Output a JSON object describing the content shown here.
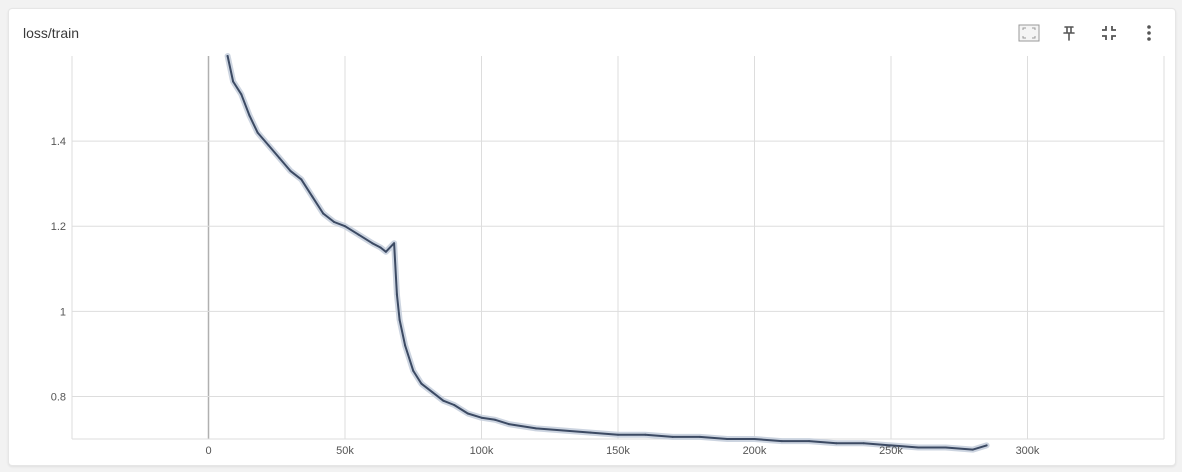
{
  "card": {
    "title": "loss/train"
  },
  "toolbar": {
    "buttons": [
      {
        "icon": "fit-domain-icon"
      },
      {
        "icon": "pin-icon"
      },
      {
        "icon": "collapse-icon"
      },
      {
        "icon": "more-vert-icon"
      }
    ]
  },
  "colors": {
    "smoothed_line": "#3c4a63",
    "raw_line": "#c7cfdd",
    "grid": "#dddddd",
    "zero_axis": "#b0b0b0",
    "icon": "#555555"
  },
  "chart_data": {
    "type": "line",
    "title": "loss/train",
    "xlabel": "",
    "ylabel": "",
    "xlim": [
      -50000,
      350000
    ],
    "ylim": [
      0.7,
      1.6
    ],
    "x_ticks": [
      0,
      50000,
      100000,
      150000,
      200000,
      250000,
      300000
    ],
    "x_tick_labels": [
      "0",
      "50k",
      "100k",
      "150k",
      "200k",
      "250k",
      "300k"
    ],
    "y_ticks": [
      0.8,
      1.0,
      1.2,
      1.4
    ],
    "y_tick_labels": [
      "0.8",
      "1",
      "1.2",
      "1.4"
    ],
    "grid": true,
    "series": [
      {
        "style": "smoothed",
        "x": [
          7000,
          9000,
          12000,
          15000,
          18000,
          22000,
          26000,
          30000,
          34000,
          38000,
          42000,
          46000,
          50000,
          55000,
          60000,
          63000,
          65000,
          68000,
          69000,
          70000,
          72000,
          75000,
          78000,
          82000,
          86000,
          90000,
          95000,
          100000,
          105000,
          110000,
          120000,
          130000,
          140000,
          150000,
          160000,
          170000,
          180000,
          190000,
          200000,
          210000,
          220000,
          230000,
          240000,
          250000,
          260000,
          270000,
          280000,
          285000
        ],
        "y": [
          1.6,
          1.54,
          1.51,
          1.46,
          1.42,
          1.39,
          1.36,
          1.33,
          1.31,
          1.27,
          1.23,
          1.21,
          1.2,
          1.18,
          1.16,
          1.15,
          1.14,
          1.16,
          1.04,
          0.98,
          0.92,
          0.86,
          0.83,
          0.81,
          0.79,
          0.78,
          0.76,
          0.75,
          0.745,
          0.735,
          0.725,
          0.72,
          0.715,
          0.71,
          0.71,
          0.705,
          0.705,
          0.7,
          0.7,
          0.695,
          0.695,
          0.69,
          0.69,
          0.685,
          0.68,
          0.68,
          0.675,
          0.685
        ]
      }
    ]
  }
}
